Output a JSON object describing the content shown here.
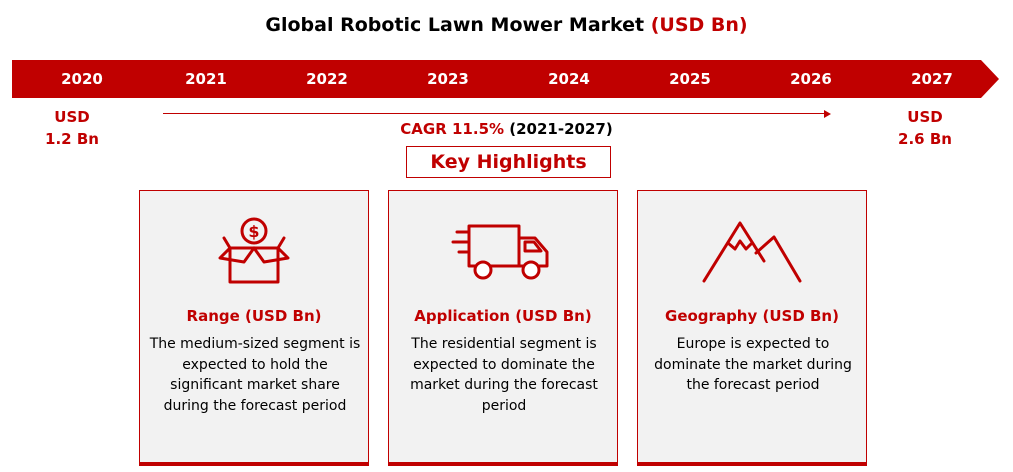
{
  "title": {
    "main": "Global Robotic Lawn Mower Market ",
    "accent": "(USD Bn)"
  },
  "timeline": [
    "2020",
    "2021",
    "2022",
    "2023",
    "2024",
    "2025",
    "2026",
    "2027"
  ],
  "start_value": {
    "line1": "USD",
    "line2": "1.2 Bn"
  },
  "end_value": {
    "line1": "USD",
    "line2": "2.6 Bn"
  },
  "cagr": {
    "label": "CAGR 11.5%",
    "period": " (2021-2027)"
  },
  "key_highlights": "Key Highlights",
  "cards": [
    {
      "icon": "money-box-icon",
      "title": "Range (USD Bn)",
      "text": "The medium-sized segment is expected to hold the significant market share during the forecast period"
    },
    {
      "icon": "delivery-truck-icon",
      "title": "Application (USD Bn)",
      "text": "The residential segment is expected to dominate the market during the forecast period"
    },
    {
      "icon": "mountain-icon",
      "title": "Geography (USD Bn)",
      "text": "Europe is expected to dominate the market during the forecast period"
    }
  ],
  "colors": {
    "accent": "#c00000",
    "card_bg": "#f2f2f2"
  }
}
